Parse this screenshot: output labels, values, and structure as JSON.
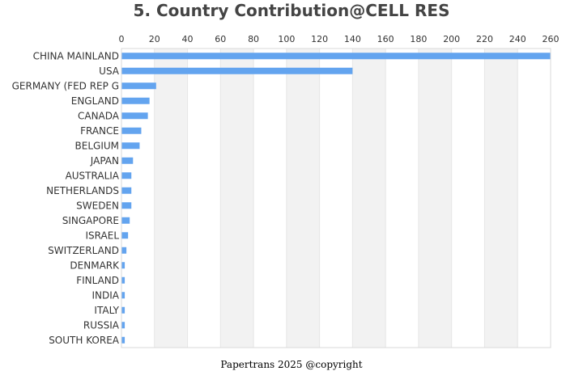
{
  "chart_data": {
    "type": "bar",
    "orientation": "horizontal",
    "title": "5. Country Contribution@CELL RES",
    "categories": [
      "CHINA MAINLAND",
      "USA",
      "GERMANY (FED REP G",
      "ENGLAND",
      "CANADA",
      "FRANCE",
      "BELGIUM",
      "JAPAN",
      "AUSTRALIA",
      "NETHERLANDS",
      "SWEDEN",
      "SINGAPORE",
      "ISRAEL",
      "SWITZERLAND",
      "DENMARK",
      "FINLAND",
      "INDIA",
      "ITALY",
      "RUSSIA",
      "SOUTH KOREA"
    ],
    "values": [
      260,
      140,
      21,
      17,
      16,
      12,
      11,
      7,
      6,
      6,
      6,
      5,
      4,
      3,
      2,
      2,
      2,
      2,
      2,
      2
    ],
    "xlim": [
      0,
      260
    ],
    "xticks": [
      "0",
      "20",
      "40",
      "60",
      "80",
      "100",
      "120",
      "140",
      "160",
      "180",
      "200",
      "220",
      "240",
      "260"
    ],
    "x_axis_position": "top",
    "grid": "alternating vertical bands",
    "bar_color": "#63a4ef",
    "band_color": "#f2f2f2"
  },
  "footer": "Papertrans 2025 @copyright"
}
